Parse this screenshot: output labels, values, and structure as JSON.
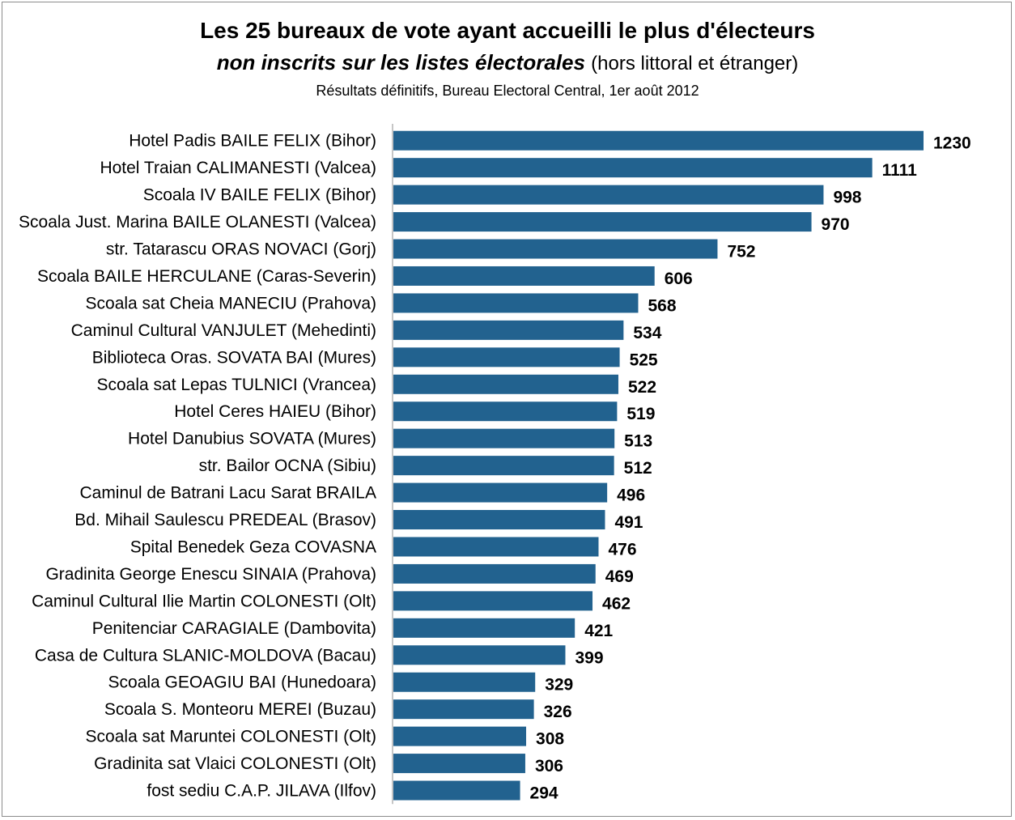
{
  "chart_data": {
    "type": "bar",
    "orientation": "horizontal",
    "title": "Les 25 bureaux de vote ayant accueilli le plus d'électeurs",
    "title_line2_italic": "non inscrits sur les listes électorales",
    "title_line2_normal": "(hors littoral et étranger)",
    "subtitle": "Résultats définitifs, Bureau Electoral Central, 1er août 2012",
    "bar_color": "#22628F",
    "grid": false,
    "legend": "none",
    "xlim": [
      0,
      1230
    ],
    "categories": [
      "Hotel Padis BAILE FELIX (Bihor)",
      "Hotel Traian CALIMANESTI (Valcea)",
      "Scoala IV BAILE FELIX (Bihor)",
      "Scoala Just. Marina BAILE OLANESTI (Valcea)",
      "str. Tatarascu ORAS NOVACI (Gorj)",
      "Scoala BAILE HERCULANE (Caras-Severin)",
      "Scoala sat Cheia MANECIU (Prahova)",
      "Caminul Cultural VANJULET (Mehedinti)",
      "Biblioteca Oras. SOVATA BAI (Mures)",
      "Scoala sat Lepas TULNICI (Vrancea)",
      "Hotel Ceres HAIEU (Bihor)",
      "Hotel Danubius SOVATA (Mures)",
      "str. Bailor OCNA (Sibiu)",
      "Caminul de Batrani Lacu Sarat BRAILA",
      "Bd. Mihail Saulescu PREDEAL (Brasov)",
      "Spital Benedek Geza COVASNA",
      "Gradinita George Enescu SINAIA (Prahova)",
      "Caminul Cultural Ilie Martin COLONESTI (Olt)",
      "Penitenciar CARAGIALE (Dambovita)",
      "Casa de Cultura SLANIC-MOLDOVA (Bacau)",
      "Scoala GEOAGIU BAI (Hunedoara)",
      "Scoala S. Monteoru MEREI (Buzau)",
      "Scoala sat Maruntei COLONESTI (Olt)",
      "Gradinita sat Vlaici COLONESTI (Olt)",
      "fost sediu C.A.P. JILAVA (Ilfov)"
    ],
    "values": [
      1230,
      1111,
      998,
      970,
      752,
      606,
      568,
      534,
      525,
      522,
      519,
      513,
      512,
      496,
      491,
      476,
      469,
      462,
      421,
      399,
      329,
      326,
      308,
      306,
      294
    ]
  }
}
